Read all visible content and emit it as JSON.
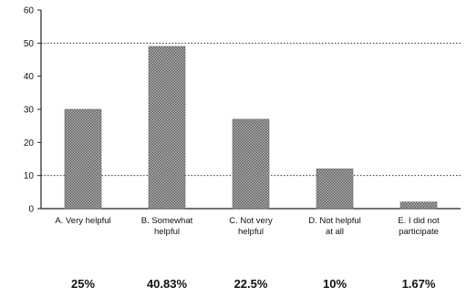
{
  "chart_data": {
    "type": "bar",
    "categories": [
      [
        "A. Very helpful"
      ],
      [
        "B. Somewhat",
        "helpful"
      ],
      [
        "C. Not very",
        "helpful"
      ],
      [
        "D. Not helpful",
        "at all"
      ],
      [
        "E. I did not",
        "participate"
      ]
    ],
    "values": [
      30,
      49,
      27,
      12,
      2
    ],
    "percentages": [
      "25%",
      "40.83%",
      "22.5%",
      "10%",
      "1.67%"
    ],
    "yticks": [
      "0",
      "10",
      "20",
      "30",
      "40",
      "50",
      "60"
    ],
    "ylim": [
      0,
      60
    ],
    "reference_lines": [
      10,
      50
    ],
    "bar_color": "#8c8c8c"
  }
}
